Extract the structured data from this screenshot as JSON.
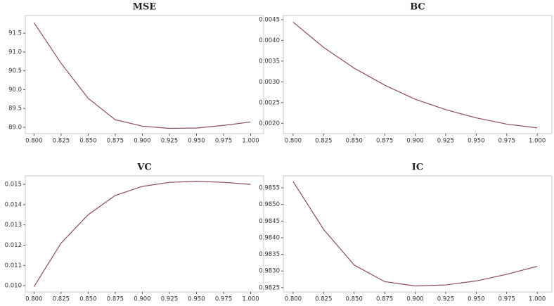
{
  "chart_data": [
    {
      "type": "line",
      "title": "MSE",
      "x": [
        0.8,
        0.825,
        0.85,
        0.875,
        0.9,
        0.925,
        0.95,
        0.975,
        1.0
      ],
      "values": [
        91.78,
        90.7,
        89.77,
        89.2,
        89.03,
        88.97,
        88.98,
        89.05,
        89.14
      ],
      "color": "#8b4a5e",
      "xlim": [
        0.792,
        1.012
      ],
      "ylim": [
        88.83,
        91.97
      ],
      "xticks": [
        {
          "value": 0.8,
          "label": "0.800"
        },
        {
          "value": 0.825,
          "label": "0.825"
        },
        {
          "value": 0.85,
          "label": "0.850"
        },
        {
          "value": 0.875,
          "label": "0.875"
        },
        {
          "value": 0.9,
          "label": "0.900"
        },
        {
          "value": 0.925,
          "label": "0.925"
        },
        {
          "value": 0.95,
          "label": "0.950"
        },
        {
          "value": 0.975,
          "label": "0.975"
        },
        {
          "value": 1.0,
          "label": "1.000"
        }
      ],
      "yticks": [
        {
          "value": 89,
          "label": "89.0"
        },
        89.5,
        {
          "value": 90,
          "label": "90.0"
        },
        90.5,
        {
          "value": 91,
          "label": "91.0"
        },
        91.5
      ]
    },
    {
      "type": "line",
      "title": "BC",
      "x": [
        0.8,
        0.825,
        0.85,
        0.875,
        0.9,
        0.925,
        0.95,
        0.975,
        1.0
      ],
      "values": [
        0.00444,
        0.00383,
        0.00333,
        0.00292,
        0.00258,
        0.00233,
        0.00213,
        0.00198,
        0.00189
      ],
      "color": "#8b4a5e",
      "xlim": [
        0.792,
        1.012
      ],
      "ylim": [
        0.00175,
        0.0046
      ],
      "xticks": [
        {
          "value": 0.8,
          "label": "0.800"
        },
        {
          "value": 0.825,
          "label": "0.825"
        },
        {
          "value": 0.85,
          "label": "0.850"
        },
        {
          "value": 0.875,
          "label": "0.875"
        },
        {
          "value": 0.9,
          "label": "0.900"
        },
        {
          "value": 0.925,
          "label": "0.925"
        },
        {
          "value": 0.95,
          "label": "0.950"
        },
        {
          "value": 0.975,
          "label": "0.975"
        },
        {
          "value": 1.0,
          "label": "1.000"
        }
      ],
      "yticks": [
        {
          "value": 0.002,
          "label": "0.0020"
        },
        {
          "value": 0.0025,
          "label": "0.0025"
        },
        {
          "value": 0.003,
          "label": "0.0030"
        },
        {
          "value": 0.0035,
          "label": "0.0035"
        },
        {
          "value": 0.004,
          "label": "0.0040"
        },
        {
          "value": 0.0045,
          "label": "0.0045"
        }
      ]
    },
    {
      "type": "line",
      "title": "VC",
      "x": [
        0.8,
        0.825,
        0.85,
        0.875,
        0.9,
        0.925,
        0.95,
        0.975,
        1.0
      ],
      "values": [
        0.00995,
        0.0121,
        0.0135,
        0.01445,
        0.0149,
        0.0151,
        0.01515,
        0.0151,
        0.015
      ],
      "color": "#8b4a5e",
      "xlim": [
        0.792,
        1.012
      ],
      "ylim": [
        0.00969,
        0.01542
      ],
      "xticks": [
        {
          "value": 0.8,
          "label": "0.800"
        },
        {
          "value": 0.825,
          "label": "0.825"
        },
        {
          "value": 0.85,
          "label": "0.850"
        },
        {
          "value": 0.875,
          "label": "0.875"
        },
        {
          "value": 0.9,
          "label": "0.900"
        },
        {
          "value": 0.925,
          "label": "0.925"
        },
        {
          "value": 0.95,
          "label": "0.950"
        },
        {
          "value": 0.975,
          "label": "0.975"
        },
        {
          "value": 1.0,
          "label": "1.000"
        }
      ],
      "yticks": [
        {
          "value": 0.01,
          "label": "0.010"
        },
        0.011,
        0.012,
        0.013,
        0.014,
        0.015
      ]
    },
    {
      "type": "line",
      "title": "IC",
      "x": [
        0.8,
        0.825,
        0.85,
        0.875,
        0.9,
        0.925,
        0.95,
        0.975,
        1.0
      ],
      "values": [
        0.98569,
        0.98425,
        0.98318,
        0.98268,
        0.98255,
        0.98258,
        0.9827,
        0.9829,
        0.98314
      ],
      "color": "#8b4a5e",
      "xlim": [
        0.792,
        1.012
      ],
      "ylim": [
        0.98237,
        0.98586
      ],
      "xticks": [
        {
          "value": 0.8,
          "label": "0.800"
        },
        {
          "value": 0.825,
          "label": "0.825"
        },
        {
          "value": 0.85,
          "label": "0.850"
        },
        {
          "value": 0.875,
          "label": "0.875"
        },
        {
          "value": 0.9,
          "label": "0.900"
        },
        {
          "value": 0.925,
          "label": "0.925"
        },
        {
          "value": 0.95,
          "label": "0.950"
        },
        {
          "value": 0.975,
          "label": "0.975"
        },
        {
          "value": 1.0,
          "label": "1.000"
        }
      ],
      "yticks": [
        0.9825,
        {
          "value": 0.983,
          "label": "0.9830"
        },
        0.9835,
        {
          "value": 0.984,
          "label": "0.9840"
        },
        0.9845,
        {
          "value": 0.985,
          "label": "0.9850"
        },
        0.9855
      ]
    }
  ]
}
